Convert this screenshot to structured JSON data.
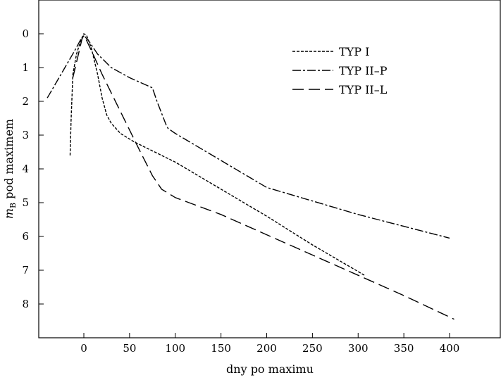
{
  "chart_data": {
    "type": "line",
    "title": "",
    "xlabel": "dny po maximu",
    "ylabel": "m_B pod maximem",
    "ylabel_main": "m",
    "ylabel_sub": "B",
    "ylabel_rest": " pod maximem",
    "xlim": [
      -50,
      450
    ],
    "ylim": [
      0,
      8
    ],
    "y_inverted": true,
    "xticks": [
      0,
      50,
      100,
      150,
      200,
      250,
      300,
      350,
      400
    ],
    "yticks": [
      0,
      1,
      2,
      3,
      4,
      5,
      6,
      7,
      8
    ],
    "grid": false,
    "legend_position": "top-right",
    "series": [
      {
        "name": "TYP I",
        "dash": "dotted-dash",
        "x": [
          -15,
          -14,
          -12,
          -8,
          -4,
          -1,
          0,
          3,
          8,
          15,
          20,
          25,
          30,
          40,
          55,
          70,
          85,
          100,
          150,
          200,
          250,
          307
        ],
        "y": [
          3.6,
          2.6,
          1.2,
          0.6,
          0.25,
          0.05,
          0.0,
          0.05,
          0.4,
          1.2,
          1.9,
          2.4,
          2.65,
          2.95,
          3.2,
          3.4,
          3.6,
          3.8,
          4.6,
          5.4,
          6.25,
          7.15
        ]
      },
      {
        "name": "TYP II–P",
        "dash": "dash-dot",
        "x": [
          -40,
          -25,
          -10,
          -3,
          0,
          5,
          15,
          30,
          50,
          75,
          80,
          90,
          92,
          100,
          150,
          200,
          250,
          300,
          350,
          400
        ],
        "y": [
          1.9,
          1.2,
          0.5,
          0.15,
          0.05,
          0.2,
          0.6,
          1.0,
          1.3,
          1.6,
          2.0,
          2.7,
          2.8,
          2.95,
          3.75,
          4.55,
          4.95,
          5.35,
          5.7,
          6.05
        ]
      },
      {
        "name": "TYP II–L",
        "dash": "long-dash",
        "x": [
          -12,
          -5,
          -2,
          0,
          3,
          10,
          20,
          40,
          60,
          75,
          85,
          100,
          120,
          150,
          200,
          250,
          300,
          350,
          405
        ],
        "y": [
          1.3,
          0.5,
          0.15,
          0.05,
          0.2,
          0.6,
          1.2,
          2.3,
          3.4,
          4.2,
          4.6,
          4.85,
          5.05,
          5.35,
          5.95,
          6.55,
          7.15,
          7.75,
          8.45
        ]
      }
    ]
  }
}
